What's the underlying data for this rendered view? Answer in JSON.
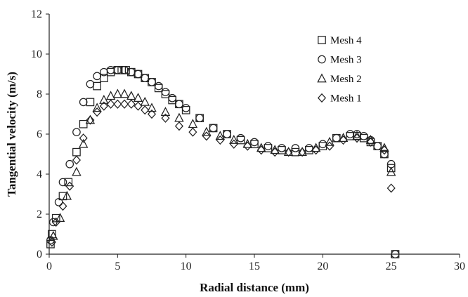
{
  "chart_data": {
    "type": "scatter",
    "title": "",
    "xlabel": "Radial distance (mm)",
    "ylabel": "Tangential velocity (m/s)",
    "xlim": [
      0,
      30
    ],
    "ylim": [
      0,
      12
    ],
    "xticks": [
      "0",
      "5",
      "10",
      "15",
      "20",
      "25",
      "30"
    ],
    "yticks": [
      "0",
      "2",
      "4",
      "6",
      "8",
      "10",
      "12"
    ],
    "grid": false,
    "legend_position": "top-right",
    "series": [
      {
        "name": "Mesh 4",
        "marker": "square",
        "x": [
          0.1,
          0.2,
          0.5,
          1.0,
          1.4,
          2.0,
          2.5,
          3.0,
          3.5,
          4.0,
          4.5,
          5.0,
          5.3,
          5.6,
          6.0,
          6.5,
          7.0,
          7.5,
          8.0,
          8.5,
          9.0,
          9.5,
          10.0,
          11.0,
          12.0,
          13.0,
          14.0,
          15.0,
          16.0,
          17.0,
          18.0,
          19.0,
          20.0,
          21.0,
          22.0,
          22.5,
          23.0,
          23.5,
          24.0,
          24.5,
          25.0,
          25.3
        ],
        "y": [
          0.5,
          1.0,
          1.8,
          2.9,
          3.6,
          5.1,
          6.5,
          7.6,
          8.4,
          8.8,
          9.1,
          9.2,
          9.2,
          9.2,
          9.1,
          9.0,
          8.8,
          8.6,
          8.3,
          8.0,
          7.7,
          7.5,
          7.2,
          6.8,
          6.3,
          6.0,
          5.7,
          5.5,
          5.3,
          5.2,
          5.1,
          5.2,
          5.4,
          5.8,
          5.9,
          5.9,
          5.8,
          5.6,
          5.4,
          5.0,
          4.3,
          0.0
        ]
      },
      {
        "name": "Mesh 3",
        "marker": "circle",
        "x": [
          0.1,
          0.3,
          0.7,
          1.0,
          1.5,
          2.0,
          2.5,
          3.0,
          3.5,
          4.0,
          4.5,
          5.0,
          5.5,
          6.0,
          6.5,
          7.0,
          7.5,
          8.0,
          8.5,
          9.0,
          9.5,
          10.0,
          11.0,
          12.0,
          13.0,
          14.0,
          15.0,
          16.0,
          17.0,
          18.0,
          19.0,
          20.0,
          21.0,
          22.0,
          22.5,
          23.0,
          23.5,
          24.0,
          24.5,
          25.0,
          25.3
        ],
        "y": [
          0.7,
          1.6,
          2.6,
          3.6,
          4.5,
          6.1,
          7.6,
          8.5,
          8.9,
          9.1,
          9.2,
          9.2,
          9.2,
          9.1,
          9.0,
          8.8,
          8.6,
          8.4,
          8.1,
          7.8,
          7.5,
          7.3,
          6.8,
          6.3,
          6.0,
          5.8,
          5.6,
          5.4,
          5.3,
          5.3,
          5.3,
          5.5,
          5.8,
          6.0,
          6.0,
          5.9,
          5.7,
          5.4,
          5.0,
          4.5,
          0.0
        ]
      },
      {
        "name": "Mesh 2",
        "marker": "triangle",
        "x": [
          0.3,
          0.8,
          1.3,
          2.0,
          2.5,
          3.0,
          3.5,
          4.0,
          4.5,
          5.0,
          5.5,
          6.0,
          6.5,
          7.0,
          7.5,
          8.5,
          9.5,
          10.5,
          11.5,
          12.5,
          13.5,
          14.5,
          15.5,
          16.5,
          17.5,
          18.5,
          19.5,
          20.5,
          21.5,
          22.5,
          23.5,
          24.5,
          25.0
        ],
        "y": [
          0.9,
          1.8,
          2.9,
          4.1,
          5.5,
          6.7,
          7.3,
          7.7,
          7.9,
          8.0,
          8.0,
          7.9,
          7.8,
          7.6,
          7.3,
          7.1,
          6.8,
          6.5,
          6.1,
          5.9,
          5.7,
          5.5,
          5.3,
          5.2,
          5.1,
          5.1,
          5.3,
          5.6,
          5.8,
          5.9,
          5.7,
          5.3,
          4.1
        ]
      },
      {
        "name": "Mesh 1",
        "marker": "diamond",
        "x": [
          0.2,
          0.5,
          1.0,
          1.5,
          2.0,
          2.5,
          3.0,
          3.5,
          4.0,
          4.5,
          5.0,
          5.5,
          6.0,
          6.5,
          7.0,
          7.5,
          8.5,
          9.5,
          10.5,
          11.5,
          12.5,
          13.5,
          14.5,
          15.5,
          16.5,
          17.5,
          18.5,
          19.5,
          20.5,
          21.5,
          22.5,
          23.5,
          24.5,
          25.0
        ],
        "y": [
          0.6,
          1.6,
          2.4,
          3.4,
          4.7,
          5.8,
          6.7,
          7.1,
          7.4,
          7.5,
          7.5,
          7.5,
          7.5,
          7.4,
          7.2,
          7.0,
          6.8,
          6.4,
          6.1,
          5.9,
          5.7,
          5.5,
          5.4,
          5.2,
          5.1,
          5.1,
          5.1,
          5.2,
          5.4,
          5.7,
          5.8,
          5.6,
          5.2,
          3.3
        ]
      }
    ]
  }
}
